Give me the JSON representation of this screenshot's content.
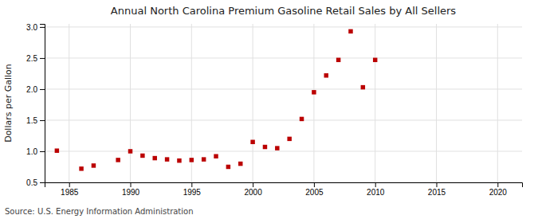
{
  "chart_data": {
    "type": "scatter",
    "title": "Annual North Carolina Premium Gasoline Retail Sales by All Sellers",
    "y_label": "Dollars per Gallon",
    "annotations": [
      "Source: U.S. Energy Information Administration"
    ],
    "x": [
      1984,
      1986,
      1987,
      1989,
      1990,
      1991,
      1992,
      1993,
      1994,
      1995,
      1996,
      1997,
      1998,
      1999,
      2000,
      2001,
      2002,
      2003,
      2004,
      2005,
      2006,
      2007,
      2008,
      2009,
      2010
    ],
    "values": [
      1.01,
      0.72,
      0.77,
      0.86,
      1.0,
      0.93,
      0.89,
      0.87,
      0.85,
      0.86,
      0.87,
      0.92,
      0.75,
      0.8,
      1.15,
      1.07,
      1.05,
      1.2,
      1.52,
      1.95,
      2.22,
      2.47,
      2.93,
      2.03,
      2.47
    ],
    "color": "#bb0000",
    "marker": "square",
    "xlim": [
      1983,
      2022
    ],
    "ylim": [
      0.5,
      3.05
    ],
    "xticks": [
      1985,
      1990,
      1995,
      2000,
      2005,
      2010,
      2015,
      2020
    ],
    "yticks": [
      0.5,
      {
        "value": 1.0,
        "label": "1.0"
      },
      1.5,
      {
        "value": 2.0,
        "label": "2.0"
      },
      2.5,
      {
        "value": 3.0,
        "label": "3.0"
      }
    ],
    "grid": true
  }
}
